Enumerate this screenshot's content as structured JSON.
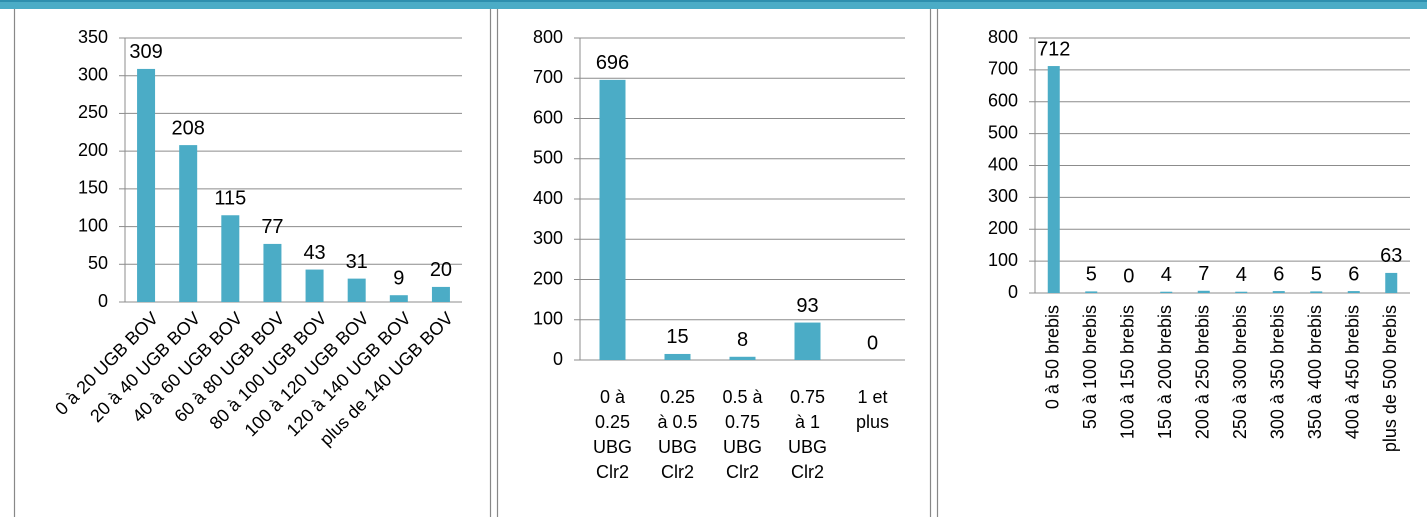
{
  "chart_data": [
    {
      "type": "bar",
      "color": "#4bacc6",
      "categories": [
        "0 à 20 UGB BOV",
        "20 à 40 UGB BOV",
        "40 à 60 UGB BOV",
        "60 à 80 UGB BOV",
        "80 à 100 UGB BOV",
        "100 à 120 UGB BOV",
        "120 à 140 UGB BOV",
        "plus de 140 UGB BOV"
      ],
      "values": [
        309,
        208,
        115,
        77,
        43,
        31,
        9,
        20
      ],
      "ylim": [
        0,
        350
      ],
      "yticks": [
        0,
        50,
        100,
        150,
        200,
        250,
        300,
        350
      ],
      "grid": true
    },
    {
      "type": "bar",
      "color": "#4bacc6",
      "categories": [
        [
          "0 à",
          "0.25",
          "UBG",
          "Clr2"
        ],
        [
          "0.25",
          "à 0.5",
          "UBG",
          "Clr2"
        ],
        [
          "0.5 à",
          "0.75",
          "UBG",
          "Clr2"
        ],
        [
          "0.75",
          "à 1",
          "UBG",
          "Clr2"
        ],
        [
          "1 et",
          "plus"
        ]
      ],
      "values": [
        696,
        15,
        8,
        93,
        0
      ],
      "ylim": [
        0,
        800
      ],
      "yticks": [
        0,
        100,
        200,
        300,
        400,
        500,
        600,
        700,
        800
      ],
      "grid": true
    },
    {
      "type": "bar",
      "color": "#4bacc6",
      "categories": [
        "0 à 50 brebis",
        "50 à 100 brebis",
        "100 à 150 brebis",
        "150 à 200 brebis",
        "200 à 250 brebis",
        "250 à 300 brebis",
        "300 à 350 brebis",
        "350 à 400 brebis",
        "400 à 450 brebis",
        "plus de 500 brebis"
      ],
      "values": [
        712,
        5,
        0,
        4,
        7,
        4,
        6,
        5,
        6,
        63
      ],
      "ylim": [
        0,
        800
      ],
      "yticks": [
        0,
        100,
        200,
        300,
        400,
        500,
        600,
        700,
        800
      ],
      "grid": true
    }
  ]
}
